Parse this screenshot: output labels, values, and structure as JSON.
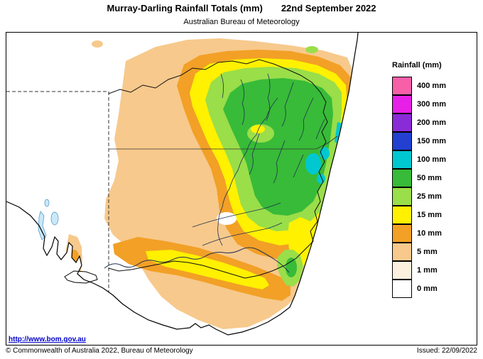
{
  "title": {
    "main": "Murray-Darling Rainfall Totals (mm)",
    "date": "22nd September 2022",
    "subtitle": "Australian Bureau of Meteorology"
  },
  "legend": {
    "title": "Rainfall (mm)",
    "items": [
      {
        "label": "400 mm",
        "palette_key": "mm400"
      },
      {
        "label": "300 mm",
        "palette_key": "mm300"
      },
      {
        "label": "200 mm",
        "palette_key": "mm200"
      },
      {
        "label": "150 mm",
        "palette_key": "mm150"
      },
      {
        "label": "100 mm",
        "palette_key": "mm100"
      },
      {
        "label": "50 mm",
        "palette_key": "mm50"
      },
      {
        "label": "25 mm",
        "palette_key": "mm25"
      },
      {
        "label": "15 mm",
        "palette_key": "mm15"
      },
      {
        "label": "10 mm",
        "palette_key": "mm10"
      },
      {
        "label": "5 mm",
        "palette_key": "mm5"
      },
      {
        "label": "1 mm",
        "palette_key": "mm1"
      },
      {
        "label": "0 mm",
        "palette_key": "mm0"
      }
    ]
  },
  "palette": {
    "mm400": "#F75FA8",
    "mm300": "#E620E6",
    "mm200": "#8A2BD8",
    "mm150": "#2440D0",
    "mm100": "#00C8D0",
    "mm50": "#38BB38",
    "mm25": "#9ADE49",
    "mm15": "#FFF100",
    "mm10": "#F2A026",
    "mm5": "#F7C98C",
    "mm1": "#FCF1DF",
    "mm0": "#FFFFFF"
  },
  "map": {
    "ocean_color": "#FFFFFF",
    "lake_color": "#C9E8F8"
  },
  "footer": {
    "url": "http://www.bom.gov.au",
    "copyright": "© Commonwealth of Australia 2022, Bureau of Meteorology",
    "issued": "Issued: 22/09/2022"
  }
}
